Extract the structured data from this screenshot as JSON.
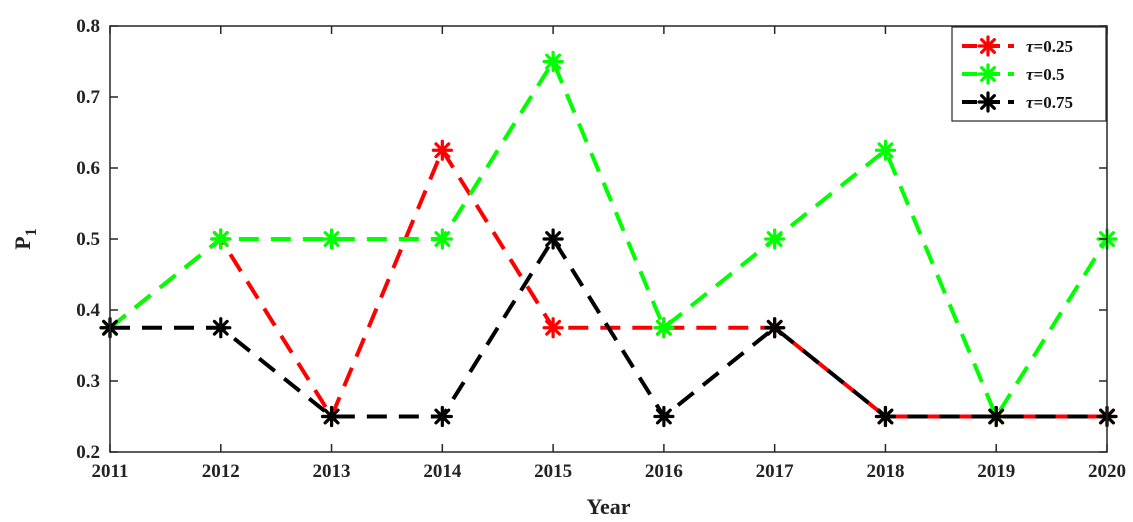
{
  "chart_data": {
    "type": "line",
    "title": "",
    "xlabel": "Year",
    "ylabel_main": "P",
    "ylabel_sub": "1",
    "x": [
      2011,
      2012,
      2013,
      2014,
      2015,
      2016,
      2017,
      2018,
      2019,
      2020
    ],
    "xticks": [
      "2011",
      "2012",
      "2013",
      "2014",
      "2015",
      "2016",
      "2017",
      "2018",
      "2019",
      "2020"
    ],
    "ylim": [
      0.2,
      0.8
    ],
    "yticks": [
      "0.2",
      "0.3",
      "0.4",
      "0.5",
      "0.6",
      "0.7",
      "0.8"
    ],
    "grid": false,
    "legend_position": "top-right",
    "series": [
      {
        "name": "τ=0.25",
        "tau": "τ",
        "rest": "=0.25",
        "color": "#ff0000",
        "values": [
          0.375,
          0.5,
          0.25,
          0.625,
          0.375,
          0.375,
          0.375,
          0.25,
          0.25,
          0.25
        ]
      },
      {
        "name": "τ=0.5",
        "tau": "τ",
        "rest": "=0.5",
        "color": "#00ff00",
        "values": [
          0.375,
          0.5,
          0.5,
          0.5,
          0.75,
          0.375,
          0.5,
          0.625,
          0.25,
          0.5
        ]
      },
      {
        "name": "τ=0.75",
        "tau": "τ",
        "rest": "=0.75",
        "color": "#000000",
        "values": [
          0.375,
          0.375,
          0.25,
          0.25,
          0.5,
          0.25,
          0.375,
          0.25,
          0.25,
          0.25
        ]
      }
    ]
  }
}
